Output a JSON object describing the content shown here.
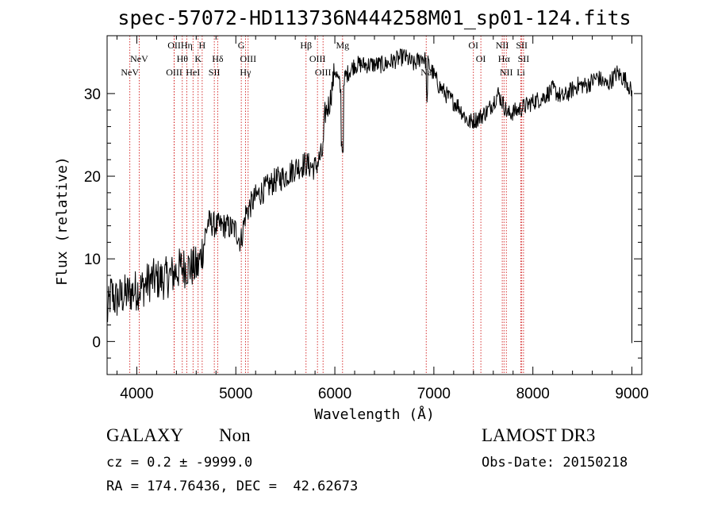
{
  "title": "spec-57072-HD113736N444258M01_sp01-124.fits",
  "info": {
    "class_label": "GALAXY",
    "subclass": "Non",
    "survey": "LAMOST DR3",
    "cz": "cz = 0.2 ± -9999.0",
    "obs_date": "Obs-Date: 20150218",
    "radec": "RA = 174.76436, DEC =  42.62673"
  },
  "colors": {
    "spectrum": "#000000",
    "line_marker": "#cc0000",
    "axes": "#000000"
  },
  "chart_data": {
    "type": "line",
    "xlabel": "Wavelength (Å)",
    "ylabel": "Flux (relative)",
    "xlim": [
      3700,
      9100
    ],
    "ylim": [
      -4,
      37
    ],
    "xticks": [
      4000,
      5000,
      6000,
      7000,
      8000,
      9000
    ],
    "yticks": [
      0,
      10,
      20,
      30
    ],
    "spectrum_anchors": [
      [
        3700,
        3
      ],
      [
        3740,
        6
      ],
      [
        3780,
        5
      ],
      [
        3850,
        5.5
      ],
      [
        3950,
        6
      ],
      [
        4050,
        6.5
      ],
      [
        4150,
        7.5
      ],
      [
        4250,
        7.5
      ],
      [
        4350,
        8
      ],
      [
        4450,
        9
      ],
      [
        4550,
        9
      ],
      [
        4620,
        9
      ],
      [
        4680,
        12
      ],
      [
        4720,
        14.5
      ],
      [
        4800,
        14
      ],
      [
        4900,
        14
      ],
      [
        5000,
        13.5
      ],
      [
        5050,
        12
      ],
      [
        5100,
        15.5
      ],
      [
        5200,
        17.5
      ],
      [
        5300,
        18.5
      ],
      [
        5400,
        19.5
      ],
      [
        5500,
        20
      ],
      [
        5600,
        21
      ],
      [
        5700,
        21.5
      ],
      [
        5800,
        21
      ],
      [
        5880,
        23
      ],
      [
        5900,
        27.5
      ],
      [
        5950,
        29
      ],
      [
        6000,
        33
      ],
      [
        6050,
        31
      ],
      [
        6080,
        28
      ],
      [
        6100,
        32
      ],
      [
        6200,
        33.5
      ],
      [
        6300,
        33.5
      ],
      [
        6400,
        33.5
      ],
      [
        6500,
        33.5
      ],
      [
        6600,
        34
      ],
      [
        6700,
        34.5
      ],
      [
        6800,
        33.5
      ],
      [
        6880,
        34.5
      ],
      [
        6950,
        33.5
      ],
      [
        7050,
        31
      ],
      [
        7150,
        29.5
      ],
      [
        7250,
        28.5
      ],
      [
        7350,
        26.5
      ],
      [
        7450,
        27
      ],
      [
        7550,
        28
      ],
      [
        7650,
        30
      ],
      [
        7750,
        27.5
      ],
      [
        7850,
        28
      ],
      [
        8000,
        29
      ],
      [
        8100,
        29.5
      ],
      [
        8200,
        30.5
      ],
      [
        8300,
        29.5
      ],
      [
        8450,
        31
      ],
      [
        8550,
        31
      ],
      [
        8650,
        32
      ],
      [
        8750,
        31
      ],
      [
        8850,
        32.5
      ],
      [
        8950,
        31.5
      ],
      [
        9000,
        30
      ]
    ],
    "spectral_lines": [
      {
        "label": "NeV",
        "wavelength": 3426,
        "row": 1
      },
      {
        "label": "NeV",
        "wavelength": 3346,
        "row": 2
      },
      {
        "label": "OII",
        "wavelength": 3727,
        "row": 0
      },
      {
        "label": "Hη",
        "wavelength": 3835,
        "row": 0
      },
      {
        "label": "H",
        "wavelength": 3968,
        "row": 0
      },
      {
        "label": "Hθ",
        "wavelength": 3797,
        "row": 1
      },
      {
        "label": "K",
        "wavelength": 3933,
        "row": 1
      },
      {
        "label": "OIII",
        "wavelength": 3727,
        "row": 2
      },
      {
        "label": "HeI",
        "wavelength": 3889,
        "row": 2
      },
      {
        "label": "Hδ",
        "wavelength": 4101,
        "row": 1
      },
      {
        "label": "SII",
        "wavelength": 4072,
        "row": 2
      },
      {
        "label": "G",
        "wavelength": 4304,
        "row": 0
      },
      {
        "label": "OIII",
        "wavelength": 4363,
        "row": 1
      },
      {
        "label": "Hγ",
        "wavelength": 4340,
        "row": 2
      },
      {
        "label": "Hβ",
        "wavelength": 4861,
        "row": 0
      },
      {
        "label": "OIII",
        "wavelength": 4959,
        "row": 1
      },
      {
        "label": "OIII",
        "wavelength": 5007,
        "row": 2
      },
      {
        "label": "Mg",
        "wavelength": 5175,
        "row": 0
      },
      {
        "label": "Na",
        "wavelength": 5894,
        "row": 2
      },
      {
        "label": "OI",
        "wavelength": 6300,
        "row": 0
      },
      {
        "label": "OI",
        "wavelength": 6364,
        "row": 1
      },
      {
        "label": "NII",
        "wavelength": 6548,
        "row": 0
      },
      {
        "label": "Hα",
        "wavelength": 6563,
        "row": 1
      },
      {
        "label": "NII",
        "wavelength": 6583,
        "row": 2
      },
      {
        "label": "SII",
        "wavelength": 6716,
        "row": 0
      },
      {
        "label": "SII",
        "wavelength": 6731,
        "row": 1
      },
      {
        "label": "Li",
        "wavelength": 6708,
        "row": 2
      }
    ],
    "redshift_scale": 1.1745
  }
}
